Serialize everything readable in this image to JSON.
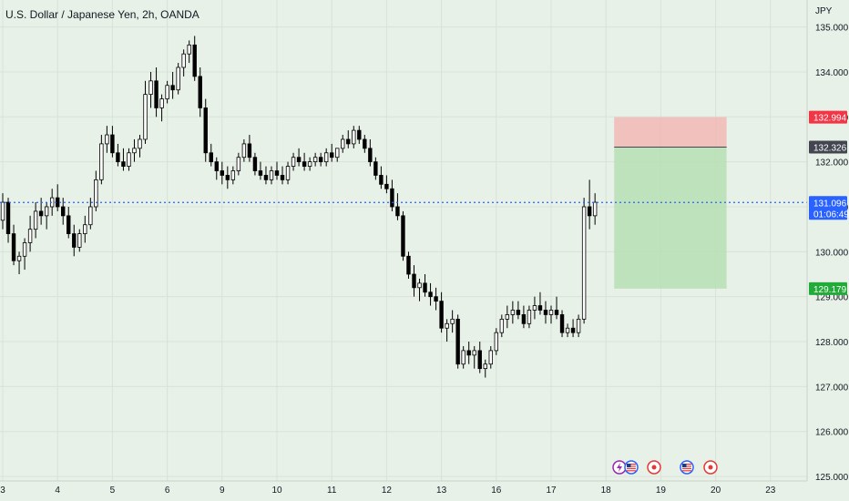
{
  "header": {
    "title": "U.S. Dollar / Japanese Yen, 2h, OANDA"
  },
  "axis": {
    "currency_label": "JPY"
  },
  "colors": {
    "background": "#e8f1e8",
    "candle": "#000000",
    "stop_zone": "#f2b8b5",
    "target_zone": "#b6dfb3",
    "price_line": "#2962ff",
    "tag_stop": "#f23645",
    "tag_entry": "#434651",
    "tag_price": "#2962ff",
    "tag_target": "#22ab38"
  },
  "price_tags": {
    "stop": "132.994",
    "entry": "132.326",
    "current": "131.096",
    "countdown": "01:06:49",
    "target": "129.179"
  },
  "events": [
    {
      "icon": "lightning-icon"
    },
    {
      "icon": "us-flag-icon"
    },
    {
      "icon": "record-icon"
    },
    {
      "icon": "us-flag-icon"
    },
    {
      "icon": "record-icon"
    }
  ],
  "chart_data": {
    "type": "candlestick",
    "symbol": "USDJPY",
    "interval": "2h",
    "ylim": [
      124.9,
      135.6
    ],
    "y_ticks": [
      "135.000",
      "134.000",
      "133.000",
      "132.000",
      "131.000",
      "130.000",
      "129.000",
      "128.000",
      "127.000",
      "126.000",
      "125.000"
    ],
    "y_tick_values": [
      135,
      134,
      133,
      132,
      131,
      130,
      129,
      128,
      127,
      126,
      125
    ],
    "x_ticks": [
      "3",
      "4",
      "5",
      "6",
      "9",
      "10",
      "11",
      "12",
      "13",
      "16",
      "17",
      "18",
      "19",
      "20",
      "23"
    ],
    "x_tick_bars": [
      0,
      10,
      20,
      30,
      40,
      50,
      60,
      70,
      80,
      90,
      100,
      110,
      120,
      130,
      140
    ],
    "position": {
      "type": "short",
      "entry": 132.326,
      "stop": 132.994,
      "target": 129.179,
      "start_bar": 111.5,
      "end_bar": 132
    },
    "current_price": 131.096,
    "candles": [
      [
        130.7,
        131.3,
        130.5,
        131.1
      ],
      [
        131.1,
        131.2,
        130.2,
        130.4
      ],
      [
        130.4,
        130.6,
        129.7,
        129.8
      ],
      [
        129.8,
        130.0,
        129.5,
        129.9
      ],
      [
        129.9,
        130.3,
        129.6,
        130.2
      ],
      [
        130.2,
        130.8,
        130.0,
        130.5
      ],
      [
        130.5,
        131.1,
        130.3,
        130.9
      ],
      [
        130.9,
        131.2,
        130.6,
        130.8
      ],
      [
        130.8,
        131.1,
        130.5,
        131.0
      ],
      [
        131.0,
        131.4,
        130.8,
        131.2
      ],
      [
        131.2,
        131.5,
        130.9,
        131.0
      ],
      [
        131.0,
        131.2,
        130.6,
        130.8
      ],
      [
        130.8,
        131.0,
        130.3,
        130.4
      ],
      [
        130.4,
        130.6,
        129.9,
        130.1
      ],
      [
        130.1,
        130.5,
        130.0,
        130.4
      ],
      [
        130.4,
        130.8,
        130.2,
        130.6
      ],
      [
        130.6,
        131.2,
        130.5,
        131.0
      ],
      [
        131.0,
        131.8,
        130.9,
        131.6
      ],
      [
        131.6,
        132.6,
        131.5,
        132.4
      ],
      [
        132.4,
        132.8,
        132.2,
        132.6
      ],
      [
        132.6,
        132.8,
        132.1,
        132.2
      ],
      [
        132.2,
        132.4,
        131.9,
        132.0
      ],
      [
        132.0,
        132.3,
        131.8,
        131.9
      ],
      [
        131.9,
        132.3,
        131.8,
        132.2
      ],
      [
        132.2,
        132.5,
        132.0,
        132.3
      ],
      [
        132.3,
        132.6,
        132.1,
        132.5
      ],
      [
        132.5,
        133.8,
        132.4,
        133.5
      ],
      [
        133.5,
        134.0,
        133.2,
        133.8
      ],
      [
        133.8,
        134.1,
        133.0,
        133.2
      ],
      [
        133.2,
        133.5,
        132.9,
        133.4
      ],
      [
        133.4,
        133.8,
        133.3,
        133.7
      ],
      [
        133.7,
        134.0,
        133.4,
        133.6
      ],
      [
        133.6,
        134.2,
        133.5,
        134.1
      ],
      [
        134.1,
        134.5,
        133.9,
        134.4
      ],
      [
        134.4,
        134.7,
        134.2,
        134.6
      ],
      [
        134.6,
        134.8,
        133.8,
        133.9
      ],
      [
        133.9,
        134.1,
        133.0,
        133.2
      ],
      [
        133.2,
        133.4,
        132.0,
        132.2
      ],
      [
        132.2,
        132.4,
        131.9,
        132.0
      ],
      [
        132.0,
        132.1,
        131.6,
        131.8
      ],
      [
        131.8,
        132.0,
        131.5,
        131.7
      ],
      [
        131.7,
        131.9,
        131.4,
        131.6
      ],
      [
        131.6,
        131.9,
        131.5,
        131.8
      ],
      [
        131.8,
        132.2,
        131.7,
        132.1
      ],
      [
        132.1,
        132.5,
        132.0,
        132.4
      ],
      [
        132.4,
        132.6,
        132.0,
        132.1
      ],
      [
        132.1,
        132.2,
        131.7,
        131.8
      ],
      [
        131.8,
        132.0,
        131.6,
        131.7
      ],
      [
        131.7,
        131.9,
        131.5,
        131.6
      ],
      [
        131.6,
        131.9,
        131.5,
        131.8
      ],
      [
        131.8,
        132.0,
        131.6,
        131.7
      ],
      [
        131.7,
        131.9,
        131.5,
        131.6
      ],
      [
        131.6,
        132.0,
        131.5,
        131.9
      ],
      [
        131.9,
        132.2,
        131.8,
        132.1
      ],
      [
        132.1,
        132.3,
        131.9,
        132.0
      ],
      [
        132.0,
        132.2,
        131.8,
        131.9
      ],
      [
        131.9,
        132.1,
        131.8,
        132.0
      ],
      [
        132.0,
        132.2,
        131.9,
        132.1
      ],
      [
        132.1,
        132.2,
        131.9,
        132.0
      ],
      [
        132.0,
        132.3,
        131.9,
        132.2
      ],
      [
        132.2,
        132.4,
        132.0,
        132.1
      ],
      [
        132.1,
        132.3,
        132.0,
        132.3
      ],
      [
        132.3,
        132.6,
        132.2,
        132.5
      ],
      [
        132.5,
        132.7,
        132.3,
        132.4
      ],
      [
        132.4,
        132.8,
        132.3,
        132.7
      ],
      [
        132.7,
        132.8,
        132.4,
        132.5
      ],
      [
        132.5,
        132.6,
        132.2,
        132.3
      ],
      [
        132.3,
        132.5,
        131.9,
        132.0
      ],
      [
        132.0,
        132.1,
        131.6,
        131.7
      ],
      [
        131.7,
        131.9,
        131.4,
        131.5
      ],
      [
        131.5,
        131.7,
        131.3,
        131.4
      ],
      [
        131.4,
        131.6,
        130.9,
        131.0
      ],
      [
        131.0,
        131.3,
        130.7,
        130.8
      ],
      [
        130.8,
        130.9,
        129.8,
        129.9
      ],
      [
        129.9,
        130.0,
        129.4,
        129.5
      ],
      [
        129.5,
        129.7,
        129.0,
        129.2
      ],
      [
        129.2,
        129.4,
        128.9,
        129.3
      ],
      [
        129.3,
        129.5,
        129.0,
        129.1
      ],
      [
        129.1,
        129.3,
        128.8,
        129.0
      ],
      [
        129.0,
        129.2,
        128.7,
        128.9
      ],
      [
        128.9,
        129.1,
        128.2,
        128.3
      ],
      [
        128.3,
        128.5,
        128.0,
        128.4
      ],
      [
        128.4,
        128.7,
        128.2,
        128.5
      ],
      [
        128.5,
        128.6,
        127.4,
        127.5
      ],
      [
        127.5,
        127.9,
        127.4,
        127.8
      ],
      [
        127.8,
        128.0,
        127.5,
        127.7
      ],
      [
        127.7,
        127.9,
        127.4,
        127.8
      ],
      [
        127.8,
        128.0,
        127.3,
        127.4
      ],
      [
        127.4,
        127.6,
        127.2,
        127.5
      ],
      [
        127.5,
        127.9,
        127.4,
        127.8
      ],
      [
        127.8,
        128.3,
        127.7,
        128.2
      ],
      [
        128.2,
        128.6,
        128.1,
        128.5
      ],
      [
        128.5,
        128.8,
        128.3,
        128.6
      ],
      [
        128.6,
        128.9,
        128.4,
        128.7
      ],
      [
        128.7,
        128.9,
        128.5,
        128.6
      ],
      [
        128.6,
        128.8,
        128.3,
        128.4
      ],
      [
        128.4,
        128.8,
        128.3,
        128.7
      ],
      [
        128.7,
        129.0,
        128.5,
        128.8
      ],
      [
        128.8,
        129.1,
        128.6,
        128.7
      ],
      [
        128.7,
        128.9,
        128.4,
        128.6
      ],
      [
        128.6,
        128.8,
        128.4,
        128.7
      ],
      [
        128.7,
        129.0,
        128.5,
        128.6
      ],
      [
        128.6,
        128.7,
        128.1,
        128.2
      ],
      [
        128.2,
        128.4,
        128.1,
        128.3
      ],
      [
        128.3,
        128.5,
        128.1,
        128.2
      ],
      [
        128.2,
        128.6,
        128.1,
        128.5
      ],
      [
        128.5,
        131.2,
        128.4,
        131.0
      ],
      [
        131.0,
        131.6,
        130.5,
        130.8
      ],
      [
        130.8,
        131.3,
        130.6,
        131.1
      ]
    ]
  }
}
